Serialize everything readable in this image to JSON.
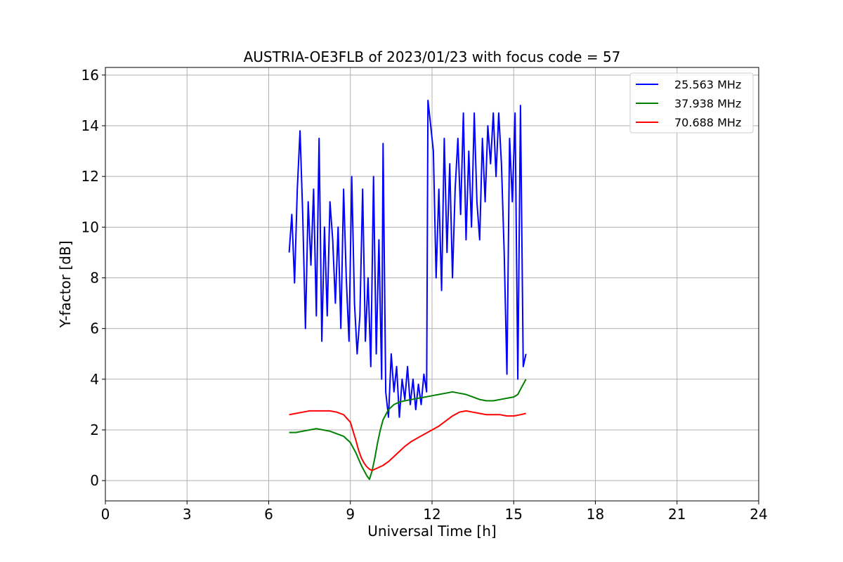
{
  "chart_data": {
    "type": "line",
    "title": "AUSTRIA-OE3FLB of 2023/01/23 with focus code = 57",
    "xlabel": "Universal Time [h]",
    "ylabel": "Y-factor [dB]",
    "xlim": [
      0,
      24
    ],
    "ylim": [
      -0.8,
      16.3
    ],
    "x_ticks": [
      0,
      3,
      6,
      9,
      12,
      15,
      18,
      21,
      24
    ],
    "y_ticks": [
      0,
      2,
      4,
      6,
      8,
      10,
      12,
      14,
      16
    ],
    "x_tick_labels": [
      "0",
      "3",
      "6",
      "9",
      "12",
      "15",
      "18",
      "21",
      "24"
    ],
    "y_tick_labels": [
      "0",
      "2",
      "4",
      "6",
      "8",
      "10",
      "12",
      "14",
      "16"
    ],
    "grid": true,
    "legend": {
      "placement": "top-right"
    },
    "series": [
      {
        "name": "25.563 MHz",
        "color": "#0000ff",
        "points": [
          [
            6.75,
            9.0
          ],
          [
            6.85,
            10.5
          ],
          [
            6.95,
            7.8
          ],
          [
            7.05,
            11.5
          ],
          [
            7.15,
            13.8
          ],
          [
            7.25,
            10.5
          ],
          [
            7.35,
            6.0
          ],
          [
            7.45,
            11.0
          ],
          [
            7.55,
            8.5
          ],
          [
            7.65,
            11.5
          ],
          [
            7.75,
            6.5
          ],
          [
            7.85,
            13.5
          ],
          [
            7.95,
            5.5
          ],
          [
            8.05,
            10.0
          ],
          [
            8.15,
            6.5
          ],
          [
            8.25,
            11.0
          ],
          [
            8.35,
            9.5
          ],
          [
            8.45,
            7.0
          ],
          [
            8.55,
            10.0
          ],
          [
            8.65,
            6.0
          ],
          [
            8.75,
            11.5
          ],
          [
            8.85,
            8.0
          ],
          [
            8.95,
            5.5
          ],
          [
            9.05,
            12.0
          ],
          [
            9.15,
            7.0
          ],
          [
            9.25,
            5.0
          ],
          [
            9.35,
            6.5
          ],
          [
            9.45,
            11.5
          ],
          [
            9.55,
            5.5
          ],
          [
            9.65,
            8.0
          ],
          [
            9.75,
            4.5
          ],
          [
            9.85,
            12.0
          ],
          [
            9.95,
            5.0
          ],
          [
            10.05,
            9.5
          ],
          [
            10.15,
            4.0
          ],
          [
            10.2,
            13.3
          ],
          [
            10.3,
            3.5
          ],
          [
            10.4,
            2.5
          ],
          [
            10.5,
            5.0
          ],
          [
            10.6,
            3.5
          ],
          [
            10.7,
            4.5
          ],
          [
            10.8,
            2.5
          ],
          [
            10.9,
            4.0
          ],
          [
            11.0,
            3.2
          ],
          [
            11.1,
            4.5
          ],
          [
            11.2,
            3.0
          ],
          [
            11.3,
            4.0
          ],
          [
            11.4,
            2.8
          ],
          [
            11.5,
            3.8
          ],
          [
            11.6,
            3.0
          ],
          [
            11.7,
            4.2
          ],
          [
            11.8,
            3.5
          ],
          [
            11.85,
            15.0
          ],
          [
            11.95,
            14.0
          ],
          [
            12.05,
            13.0
          ],
          [
            12.15,
            8.0
          ],
          [
            12.25,
            11.5
          ],
          [
            12.35,
            7.5
          ],
          [
            12.45,
            13.5
          ],
          [
            12.55,
            9.0
          ],
          [
            12.65,
            12.5
          ],
          [
            12.75,
            8.0
          ],
          [
            12.85,
            11.5
          ],
          [
            12.95,
            13.5
          ],
          [
            13.05,
            10.5
          ],
          [
            13.15,
            14.5
          ],
          [
            13.25,
            9.5
          ],
          [
            13.35,
            13.0
          ],
          [
            13.45,
            10.0
          ],
          [
            13.55,
            14.5
          ],
          [
            13.65,
            11.0
          ],
          [
            13.75,
            9.5
          ],
          [
            13.85,
            13.5
          ],
          [
            13.95,
            11.0
          ],
          [
            14.05,
            14.0
          ],
          [
            14.15,
            12.5
          ],
          [
            14.25,
            14.5
          ],
          [
            14.35,
            12.0
          ],
          [
            14.45,
            14.5
          ],
          [
            14.55,
            12.5
          ],
          [
            14.65,
            9.0
          ],
          [
            14.75,
            4.2
          ],
          [
            14.85,
            13.5
          ],
          [
            14.95,
            11.0
          ],
          [
            15.05,
            14.5
          ],
          [
            15.15,
            4.0
          ],
          [
            15.25,
            14.8
          ],
          [
            15.35,
            4.5
          ],
          [
            15.45,
            5.0
          ]
        ]
      },
      {
        "name": "37.938 MHz",
        "color": "#008000",
        "points": [
          [
            6.75,
            1.9
          ],
          [
            7.0,
            1.9
          ],
          [
            7.25,
            1.95
          ],
          [
            7.5,
            2.0
          ],
          [
            7.75,
            2.05
          ],
          [
            8.0,
            2.0
          ],
          [
            8.25,
            1.95
          ],
          [
            8.5,
            1.85
          ],
          [
            8.75,
            1.75
          ],
          [
            9.0,
            1.5
          ],
          [
            9.1,
            1.3
          ],
          [
            9.2,
            1.1
          ],
          [
            9.3,
            0.85
          ],
          [
            9.4,
            0.6
          ],
          [
            9.5,
            0.4
          ],
          [
            9.6,
            0.2
          ],
          [
            9.7,
            0.05
          ],
          [
            9.8,
            0.4
          ],
          [
            9.9,
            0.9
          ],
          [
            10.0,
            1.5
          ],
          [
            10.1,
            2.0
          ],
          [
            10.2,
            2.4
          ],
          [
            10.4,
            2.8
          ],
          [
            10.6,
            3.0
          ],
          [
            10.8,
            3.1
          ],
          [
            11.0,
            3.15
          ],
          [
            11.25,
            3.2
          ],
          [
            11.5,
            3.25
          ],
          [
            11.75,
            3.3
          ],
          [
            12.0,
            3.35
          ],
          [
            12.25,
            3.4
          ],
          [
            12.5,
            3.45
          ],
          [
            12.75,
            3.5
          ],
          [
            13.0,
            3.45
          ],
          [
            13.25,
            3.4
          ],
          [
            13.5,
            3.3
          ],
          [
            13.75,
            3.2
          ],
          [
            14.0,
            3.15
          ],
          [
            14.25,
            3.15
          ],
          [
            14.5,
            3.2
          ],
          [
            14.75,
            3.25
          ],
          [
            15.0,
            3.3
          ],
          [
            15.15,
            3.4
          ],
          [
            15.25,
            3.6
          ],
          [
            15.35,
            3.8
          ],
          [
            15.45,
            4.0
          ]
        ]
      },
      {
        "name": "70.688 MHz",
        "color": "#ff0000",
        "points": [
          [
            6.75,
            2.6
          ],
          [
            7.0,
            2.65
          ],
          [
            7.25,
            2.7
          ],
          [
            7.5,
            2.75
          ],
          [
            7.75,
            2.75
          ],
          [
            8.0,
            2.75
          ],
          [
            8.25,
            2.75
          ],
          [
            8.5,
            2.7
          ],
          [
            8.75,
            2.6
          ],
          [
            9.0,
            2.3
          ],
          [
            9.1,
            1.95
          ],
          [
            9.2,
            1.6
          ],
          [
            9.3,
            1.2
          ],
          [
            9.4,
            0.9
          ],
          [
            9.5,
            0.7
          ],
          [
            9.6,
            0.55
          ],
          [
            9.7,
            0.45
          ],
          [
            9.8,
            0.4
          ],
          [
            9.9,
            0.45
          ],
          [
            10.0,
            0.5
          ],
          [
            10.2,
            0.6
          ],
          [
            10.4,
            0.75
          ],
          [
            10.6,
            0.95
          ],
          [
            10.8,
            1.15
          ],
          [
            11.0,
            1.35
          ],
          [
            11.25,
            1.55
          ],
          [
            11.5,
            1.7
          ],
          [
            11.75,
            1.85
          ],
          [
            12.0,
            2.0
          ],
          [
            12.25,
            2.15
          ],
          [
            12.5,
            2.35
          ],
          [
            12.75,
            2.55
          ],
          [
            13.0,
            2.7
          ],
          [
            13.25,
            2.75
          ],
          [
            13.5,
            2.7
          ],
          [
            13.75,
            2.65
          ],
          [
            14.0,
            2.6
          ],
          [
            14.25,
            2.6
          ],
          [
            14.5,
            2.6
          ],
          [
            14.75,
            2.55
          ],
          [
            15.0,
            2.55
          ],
          [
            15.25,
            2.6
          ],
          [
            15.45,
            2.65
          ]
        ]
      }
    ]
  }
}
